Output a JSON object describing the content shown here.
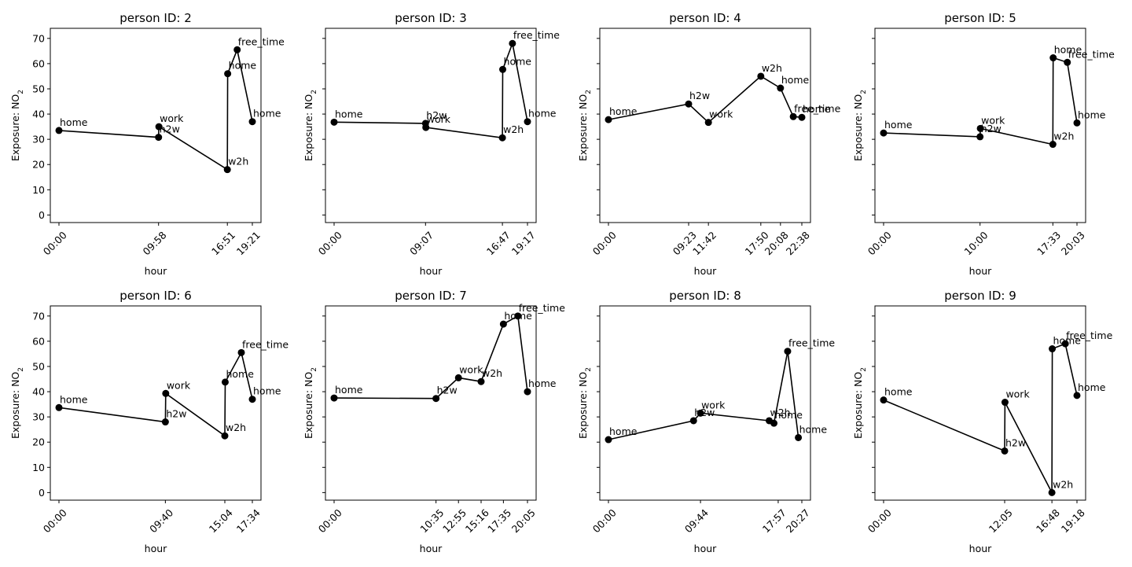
{
  "chart_data": [
    {
      "type": "line",
      "title": "person ID: 2",
      "xlabel": "hour",
      "ylabel": "Exposure: NO",
      "ylabel_sub": "2",
      "ylim": [
        -3,
        74
      ],
      "yticks": [
        0,
        10,
        20,
        30,
        40,
        50,
        60,
        70
      ],
      "xticks": [
        "00:00",
        "09:58",
        "16:51",
        "19:21"
      ],
      "points": [
        {
          "x": "00:00",
          "y": 33.5,
          "label": "home"
        },
        {
          "x": "09:58",
          "y": 30.8,
          "label": "h2w"
        },
        {
          "x": "10:00",
          "y": 35.0,
          "label": "work"
        },
        {
          "x": "16:51",
          "y": 18.0,
          "label": "w2h"
        },
        {
          "x": "16:53",
          "y": 56.0,
          "label": "home"
        },
        {
          "x": "17:50",
          "y": 65.5,
          "label": "free_time"
        },
        {
          "x": "19:21",
          "y": 37.0,
          "label": "home"
        }
      ]
    },
    {
      "type": "line",
      "title": "person ID: 3",
      "xlabel": "hour",
      "ylabel": "Exposure: NO",
      "ylabel_sub": "2",
      "ylim": [
        -3,
        74
      ],
      "yticks": [
        0,
        10,
        20,
        30,
        40,
        50,
        60,
        70
      ],
      "xticks": [
        "00:00",
        "09:07",
        "16:47",
        "19:17"
      ],
      "points": [
        {
          "x": "00:00",
          "y": 36.8,
          "label": "home"
        },
        {
          "x": "09:07",
          "y": 36.3,
          "label": "h2w"
        },
        {
          "x": "09:09",
          "y": 34.7,
          "label": "work"
        },
        {
          "x": "16:47",
          "y": 30.6,
          "label": "w2h"
        },
        {
          "x": "16:49",
          "y": 57.7,
          "label": "home"
        },
        {
          "x": "17:47",
          "y": 68.0,
          "label": "free_time"
        },
        {
          "x": "19:17",
          "y": 37.0,
          "label": "home"
        }
      ]
    },
    {
      "type": "line",
      "title": "person ID: 4",
      "xlabel": "hour",
      "ylabel": "Exposure: NO",
      "ylabel_sub": "2",
      "ylim": [
        -3,
        74
      ],
      "yticks": [
        0,
        10,
        20,
        30,
        40,
        50,
        60,
        70
      ],
      "xticks": [
        "00:00",
        "09:23",
        "11:42",
        "17:50",
        "20:08",
        "22:38"
      ],
      "points": [
        {
          "x": "00:00",
          "y": 37.8,
          "label": "home"
        },
        {
          "x": "09:23",
          "y": 44.0,
          "label": "h2w"
        },
        {
          "x": "11:42",
          "y": 36.7,
          "label": "work"
        },
        {
          "x": "17:50",
          "y": 55.0,
          "label": "w2h"
        },
        {
          "x": "20:08",
          "y": 50.3,
          "label": "home"
        },
        {
          "x": "21:38",
          "y": 39.0,
          "label": "free_time"
        },
        {
          "x": "22:38",
          "y": 38.7,
          "label": "home"
        }
      ]
    },
    {
      "type": "line",
      "title": "person ID: 5",
      "xlabel": "hour",
      "ylabel": "Exposure: NO",
      "ylabel_sub": "2",
      "ylim": [
        -3,
        74
      ],
      "yticks": [
        0,
        10,
        20,
        30,
        40,
        50,
        60,
        70
      ],
      "xticks": [
        "00:00",
        "10:00",
        "17:33",
        "20:03"
      ],
      "points": [
        {
          "x": "00:00",
          "y": 32.5,
          "label": "home"
        },
        {
          "x": "10:00",
          "y": 31.0,
          "label": "h2w"
        },
        {
          "x": "10:02",
          "y": 34.3,
          "label": "work"
        },
        {
          "x": "17:33",
          "y": 28.0,
          "label": "w2h"
        },
        {
          "x": "17:35",
          "y": 62.3,
          "label": "home"
        },
        {
          "x": "19:03",
          "y": 60.5,
          "label": "free_time"
        },
        {
          "x": "20:03",
          "y": 36.5,
          "label": "home"
        }
      ]
    },
    {
      "type": "line",
      "title": "person ID: 6",
      "xlabel": "hour",
      "ylabel": "Exposure: NO",
      "ylabel_sub": "2",
      "ylim": [
        -3,
        74
      ],
      "yticks": [
        0,
        10,
        20,
        30,
        40,
        50,
        60,
        70
      ],
      "xticks": [
        "00:00",
        "09:40",
        "15:04",
        "17:34"
      ],
      "points": [
        {
          "x": "00:00",
          "y": 33.7,
          "label": "home"
        },
        {
          "x": "09:40",
          "y": 28.0,
          "label": "h2w"
        },
        {
          "x": "09:42",
          "y": 39.3,
          "label": "work"
        },
        {
          "x": "15:04",
          "y": 22.5,
          "label": "w2h"
        },
        {
          "x": "15:06",
          "y": 43.8,
          "label": "home"
        },
        {
          "x": "16:34",
          "y": 55.5,
          "label": "free_time"
        },
        {
          "x": "17:34",
          "y": 37.0,
          "label": "home"
        }
      ]
    },
    {
      "type": "line",
      "title": "person ID: 7",
      "xlabel": "hour",
      "ylabel": "Exposure: NO",
      "ylabel_sub": "2",
      "ylim": [
        -3,
        74
      ],
      "yticks": [
        0,
        10,
        20,
        30,
        40,
        50,
        60,
        70
      ],
      "xticks": [
        "00:00",
        "10:35",
        "12:55",
        "15:16",
        "17:35",
        "20:05"
      ],
      "points": [
        {
          "x": "00:00",
          "y": 37.5,
          "label": "home"
        },
        {
          "x": "10:35",
          "y": 37.3,
          "label": "h2w"
        },
        {
          "x": "12:55",
          "y": 45.5,
          "label": "work"
        },
        {
          "x": "15:16",
          "y": 44.0,
          "label": "w2h"
        },
        {
          "x": "17:35",
          "y": 66.8,
          "label": "home"
        },
        {
          "x": "19:05",
          "y": 70.0,
          "label": "free_time"
        },
        {
          "x": "20:05",
          "y": 40.0,
          "label": "home"
        }
      ]
    },
    {
      "type": "line",
      "title": "person ID: 8",
      "xlabel": "hour",
      "ylabel": "Exposure: NO",
      "ylabel_sub": "2",
      "ylim": [
        -3,
        74
      ],
      "yticks": [
        0,
        10,
        20,
        30,
        40,
        50,
        60,
        70
      ],
      "xticks": [
        "00:00",
        "09:44",
        "17:57",
        "20:27"
      ],
      "points": [
        {
          "x": "00:00",
          "y": 21.0,
          "label": "home"
        },
        {
          "x": "09:00",
          "y": 28.5,
          "label": "h2w"
        },
        {
          "x": "09:44",
          "y": 31.5,
          "label": "work"
        },
        {
          "x": "17:00",
          "y": 28.5,
          "label": "w2h"
        },
        {
          "x": "17:30",
          "y": 27.5,
          "label": "home"
        },
        {
          "x": "18:57",
          "y": 56.0,
          "label": "free_time"
        },
        {
          "x": "20:05",
          "y": 21.8,
          "label": "home"
        }
      ]
    },
    {
      "type": "line",
      "title": "person ID: 9",
      "xlabel": "hour",
      "ylabel": "Exposure: NO",
      "ylabel_sub": "2",
      "ylim": [
        -3,
        74
      ],
      "yticks": [
        0,
        10,
        20,
        30,
        40,
        50,
        60,
        70
      ],
      "xticks": [
        "00:00",
        "12:05",
        "16:48",
        "19:18"
      ],
      "points": [
        {
          "x": "00:00",
          "y": 36.7,
          "label": "home"
        },
        {
          "x": "12:05",
          "y": 16.5,
          "label": "h2w"
        },
        {
          "x": "12:07",
          "y": 35.8,
          "label": "work"
        },
        {
          "x": "16:48",
          "y": 0.0,
          "label": "w2h"
        },
        {
          "x": "16:50",
          "y": 57.0,
          "label": "home"
        },
        {
          "x": "18:08",
          "y": 59.0,
          "label": "free_time"
        },
        {
          "x": "19:18",
          "y": 38.5,
          "label": "home"
        }
      ]
    }
  ]
}
